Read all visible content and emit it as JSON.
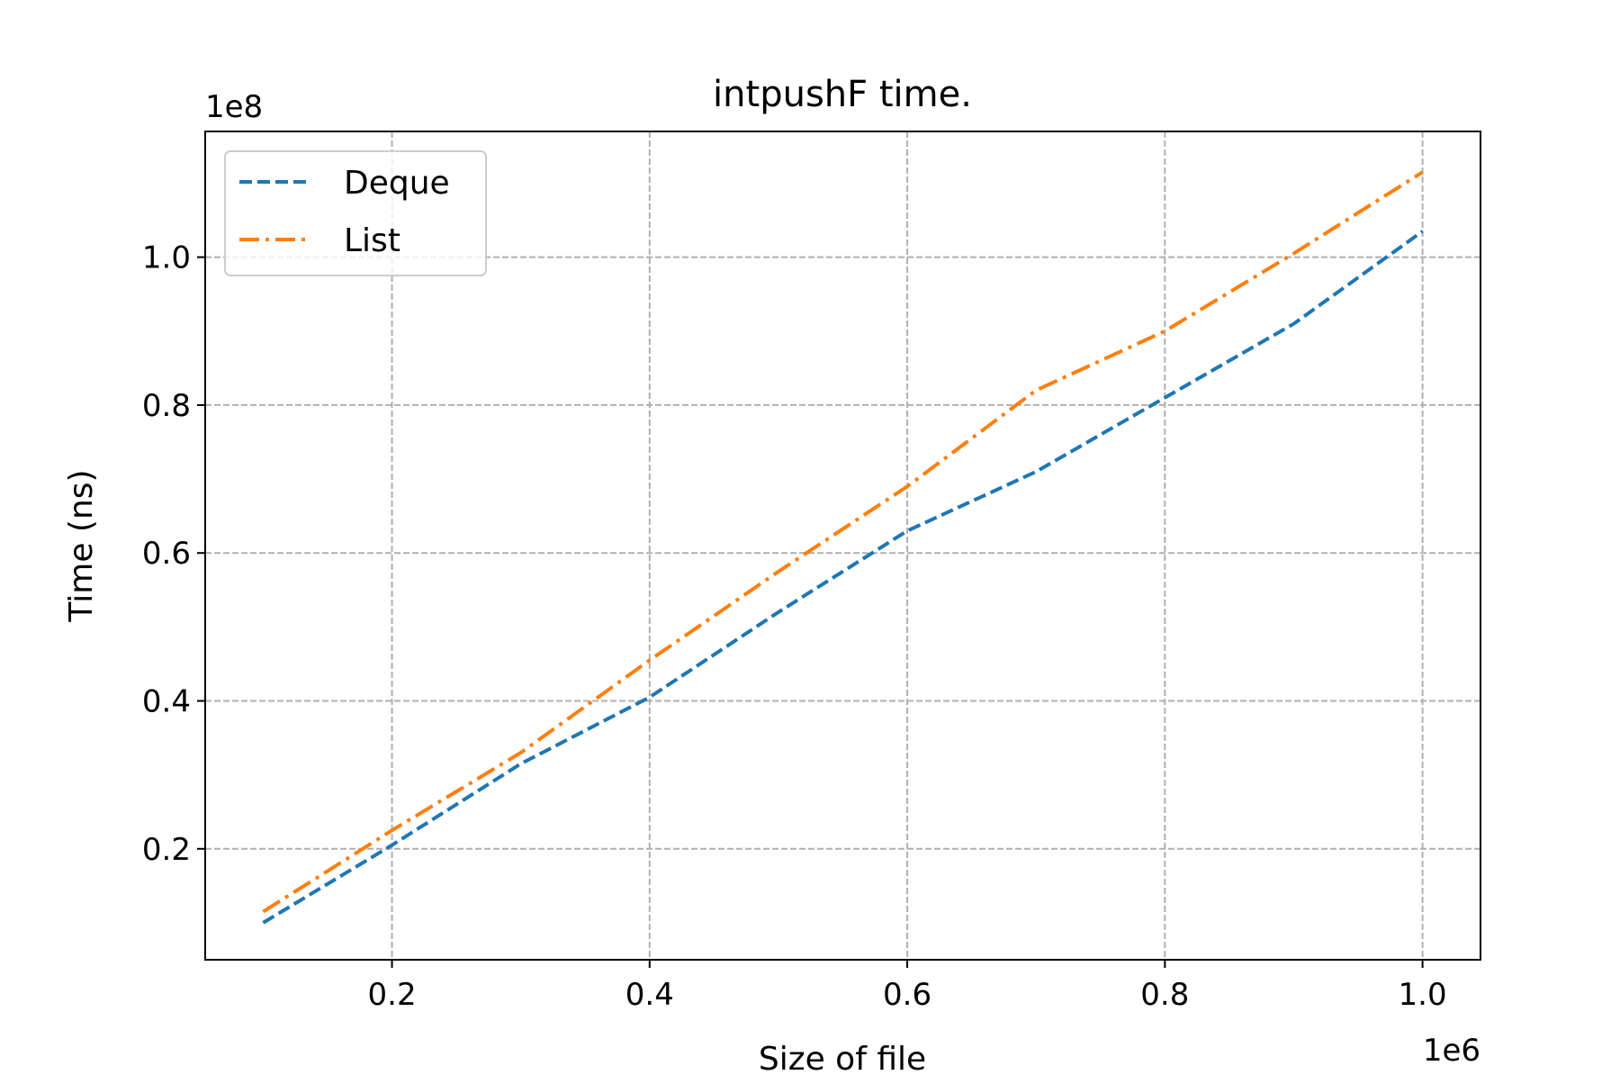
{
  "chart_data": {
    "type": "line",
    "title": "intpushF time.",
    "xlabel": "Size of file",
    "ylabel": "Time (ns)",
    "x_offset_label": "1e6",
    "y_offset_label": "1e8",
    "xlim": [
      55000,
      1045000
    ],
    "ylim": [
      5000000,
      117000000
    ],
    "xticks": [
      200000,
      400000,
      600000,
      800000,
      1000000
    ],
    "xtick_labels": [
      "0.2",
      "0.4",
      "0.6",
      "0.8",
      "1.0"
    ],
    "yticks": [
      20000000,
      40000000,
      60000000,
      80000000,
      100000000
    ],
    "ytick_labels": [
      "0.2",
      "0.4",
      "0.6",
      "0.8",
      "1.0"
    ],
    "grid": true,
    "legend_position": "top-left",
    "x": [
      100000,
      200000,
      300000,
      400000,
      500000,
      600000,
      700000,
      800000,
      900000,
      1000000
    ],
    "series": [
      {
        "name": "Deque",
        "color": "#1f77b4",
        "style": "dashed",
        "values": [
          10000000,
          20500000,
          31500000,
          40500000,
          52000000,
          63000000,
          71000000,
          81000000,
          91000000,
          103500000
        ]
      },
      {
        "name": "List",
        "color": "#ff7f0e",
        "style": "dashdot",
        "values": [
          11500000,
          22500000,
          33000000,
          45500000,
          57500000,
          69000000,
          82000000,
          90000000,
          100500000,
          111500000
        ]
      }
    ]
  }
}
